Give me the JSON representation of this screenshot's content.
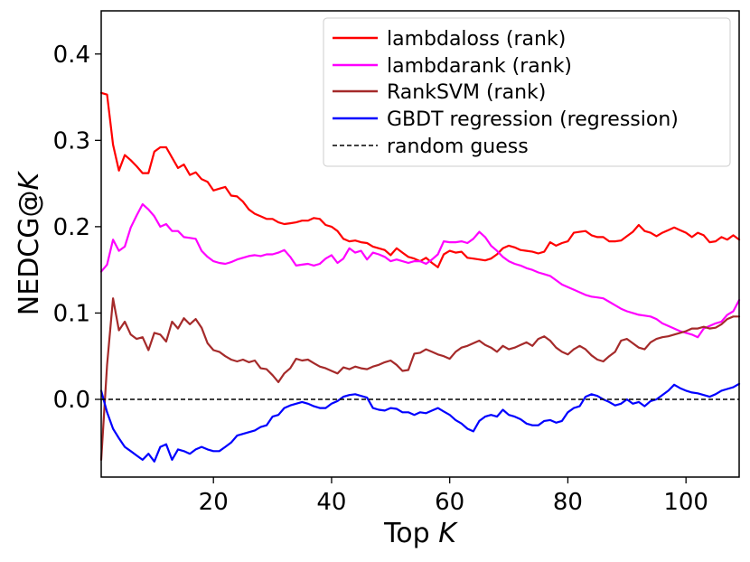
{
  "chart_data": {
    "type": "line",
    "xlabel": "Top",
    "xlabel_italic": "K",
    "ylabel": "NEDCG@",
    "ylabel_italic": "K",
    "xlim": [
      1,
      109
    ],
    "ylim": [
      -0.09,
      0.45
    ],
    "xticks": [
      20,
      40,
      60,
      80,
      100
    ],
    "yticks": [
      0.0,
      0.1,
      0.2,
      0.3,
      0.4
    ],
    "ytick_labels": [
      "0.0",
      "0.1",
      "0.2",
      "0.3",
      "0.4"
    ],
    "grid": false,
    "legend_position": "top-right",
    "reference_line": {
      "name": "random guess",
      "y": 0.0,
      "color": "#000000",
      "style": "dashed"
    },
    "x": [
      1,
      2,
      3,
      4,
      5,
      6,
      7,
      8,
      9,
      10,
      11,
      12,
      13,
      14,
      15,
      16,
      17,
      18,
      19,
      20,
      21,
      22,
      23,
      24,
      25,
      26,
      27,
      28,
      29,
      30,
      31,
      32,
      33,
      34,
      35,
      36,
      37,
      38,
      39,
      40,
      41,
      42,
      43,
      44,
      45,
      46,
      47,
      48,
      49,
      50,
      51,
      52,
      53,
      54,
      55,
      56,
      57,
      58,
      59,
      60,
      61,
      62,
      63,
      64,
      65,
      66,
      67,
      68,
      69,
      70,
      71,
      72,
      73,
      74,
      75,
      76,
      77,
      78,
      79,
      80,
      81,
      82,
      83,
      84,
      85,
      86,
      87,
      88,
      89,
      90,
      91,
      92,
      93,
      94,
      95,
      96,
      97,
      98,
      99,
      100,
      101,
      102,
      103,
      104,
      105,
      106,
      107,
      108,
      109
    ],
    "series": [
      {
        "name": "lambdaloss (rank)",
        "color": "#ff0000",
        "values": [
          0.355,
          0.353,
          0.295,
          0.265,
          0.283,
          0.277,
          0.27,
          0.262,
          0.262,
          0.287,
          0.292,
          0.292,
          0.28,
          0.268,
          0.272,
          0.26,
          0.263,
          0.255,
          0.252,
          0.242,
          0.244,
          0.246,
          0.236,
          0.235,
          0.229,
          0.22,
          0.215,
          0.212,
          0.209,
          0.209,
          0.205,
          0.203,
          0.204,
          0.205,
          0.207,
          0.207,
          0.21,
          0.209,
          0.202,
          0.2,
          0.195,
          0.186,
          0.183,
          0.184,
          0.182,
          0.181,
          0.177,
          0.175,
          0.173,
          0.167,
          0.175,
          0.17,
          0.165,
          0.163,
          0.16,
          0.164,
          0.158,
          0.153,
          0.168,
          0.172,
          0.17,
          0.171,
          0.164,
          0.163,
          0.162,
          0.161,
          0.163,
          0.168,
          0.175,
          0.178,
          0.176,
          0.173,
          0.172,
          0.171,
          0.169,
          0.171,
          0.182,
          0.178,
          0.181,
          0.183,
          0.193,
          0.194,
          0.195,
          0.19,
          0.188,
          0.188,
          0.183,
          0.183,
          0.184,
          0.189,
          0.194,
          0.202,
          0.195,
          0.193,
          0.189,
          0.193,
          0.196,
          0.199,
          0.196,
          0.193,
          0.188,
          0.193,
          0.19,
          0.182,
          0.183,
          0.188,
          0.185,
          0.19,
          0.185
        ]
      },
      {
        "name": "lambdarank (rank)",
        "color": "#ff00ff",
        "values": [
          0.148,
          0.156,
          0.185,
          0.172,
          0.177,
          0.199,
          0.213,
          0.226,
          0.22,
          0.212,
          0.2,
          0.203,
          0.195,
          0.195,
          0.188,
          0.187,
          0.186,
          0.172,
          0.165,
          0.16,
          0.158,
          0.157,
          0.159,
          0.162,
          0.164,
          0.166,
          0.167,
          0.166,
          0.168,
          0.168,
          0.17,
          0.173,
          0.165,
          0.155,
          0.156,
          0.157,
          0.155,
          0.157,
          0.163,
          0.167,
          0.158,
          0.163,
          0.175,
          0.17,
          0.172,
          0.162,
          0.17,
          0.168,
          0.165,
          0.16,
          0.162,
          0.16,
          0.158,
          0.16,
          0.16,
          0.157,
          0.162,
          0.168,
          0.183,
          0.182,
          0.182,
          0.183,
          0.181,
          0.186,
          0.194,
          0.188,
          0.178,
          0.172,
          0.165,
          0.16,
          0.157,
          0.155,
          0.152,
          0.15,
          0.147,
          0.145,
          0.143,
          0.138,
          0.133,
          0.13,
          0.127,
          0.124,
          0.121,
          0.119,
          0.118,
          0.117,
          0.113,
          0.109,
          0.105,
          0.102,
          0.1,
          0.098,
          0.097,
          0.096,
          0.093,
          0.088,
          0.085,
          0.082,
          0.079,
          0.077,
          0.075,
          0.072,
          0.082,
          0.085,
          0.088,
          0.09,
          0.098,
          0.102,
          0.115
        ]
      },
      {
        "name": "RankSVM (rank)",
        "color": "#a52a2a",
        "values": [
          -0.07,
          0.04,
          0.117,
          0.08,
          0.09,
          0.075,
          0.07,
          0.072,
          0.057,
          0.077,
          0.075,
          0.067,
          0.09,
          0.082,
          0.094,
          0.087,
          0.093,
          0.083,
          0.065,
          0.057,
          0.055,
          0.05,
          0.046,
          0.044,
          0.046,
          0.043,
          0.045,
          0.036,
          0.035,
          0.028,
          0.02,
          0.03,
          0.036,
          0.047,
          0.045,
          0.046,
          0.042,
          0.038,
          0.036,
          0.033,
          0.03,
          0.037,
          0.035,
          0.038,
          0.036,
          0.035,
          0.038,
          0.04,
          0.043,
          0.045,
          0.04,
          0.033,
          0.034,
          0.053,
          0.054,
          0.058,
          0.055,
          0.052,
          0.05,
          0.047,
          0.055,
          0.06,
          0.062,
          0.065,
          0.068,
          0.063,
          0.06,
          0.055,
          0.062,
          0.058,
          0.06,
          0.063,
          0.066,
          0.062,
          0.07,
          0.073,
          0.068,
          0.06,
          0.055,
          0.052,
          0.058,
          0.062,
          0.058,
          0.051,
          0.046,
          0.044,
          0.05,
          0.055,
          0.068,
          0.07,
          0.065,
          0.06,
          0.058,
          0.066,
          0.07,
          0.072,
          0.073,
          0.075,
          0.077,
          0.079,
          0.082,
          0.082,
          0.084,
          0.082,
          0.083,
          0.087,
          0.093,
          0.096,
          0.096
        ]
      },
      {
        "name": "GBDT regression (regression)",
        "color": "#0000ff",
        "values": [
          0.01,
          -0.015,
          -0.034,
          -0.045,
          -0.055,
          -0.06,
          -0.065,
          -0.07,
          -0.063,
          -0.072,
          -0.055,
          -0.052,
          -0.07,
          -0.058,
          -0.06,
          -0.063,
          -0.058,
          -0.055,
          -0.058,
          -0.06,
          -0.06,
          -0.055,
          -0.05,
          -0.042,
          -0.04,
          -0.038,
          -0.036,
          -0.032,
          -0.03,
          -0.02,
          -0.018,
          -0.01,
          -0.007,
          -0.005,
          -0.003,
          -0.005,
          -0.008,
          -0.01,
          -0.01,
          -0.005,
          -0.002,
          0.003,
          0.005,
          0.006,
          0.004,
          0.002,
          -0.01,
          -0.012,
          -0.013,
          -0.01,
          -0.011,
          -0.015,
          -0.015,
          -0.018,
          -0.015,
          -0.016,
          -0.013,
          -0.01,
          -0.014,
          -0.018,
          -0.024,
          -0.028,
          -0.034,
          -0.037,
          -0.025,
          -0.02,
          -0.018,
          -0.02,
          -0.012,
          -0.018,
          -0.02,
          -0.023,
          -0.028,
          -0.03,
          -0.03,
          -0.025,
          -0.024,
          -0.027,
          -0.025,
          -0.015,
          -0.01,
          -0.008,
          0.003,
          0.006,
          0.004,
          0.0,
          -0.003,
          -0.007,
          -0.005,
          0.0,
          -0.005,
          -0.003,
          -0.008,
          -0.002,
          0.0,
          0.005,
          0.01,
          0.017,
          0.013,
          0.01,
          0.008,
          0.007,
          0.005,
          0.003,
          0.006,
          0.01,
          0.012,
          0.014,
          0.018
        ]
      }
    ]
  }
}
